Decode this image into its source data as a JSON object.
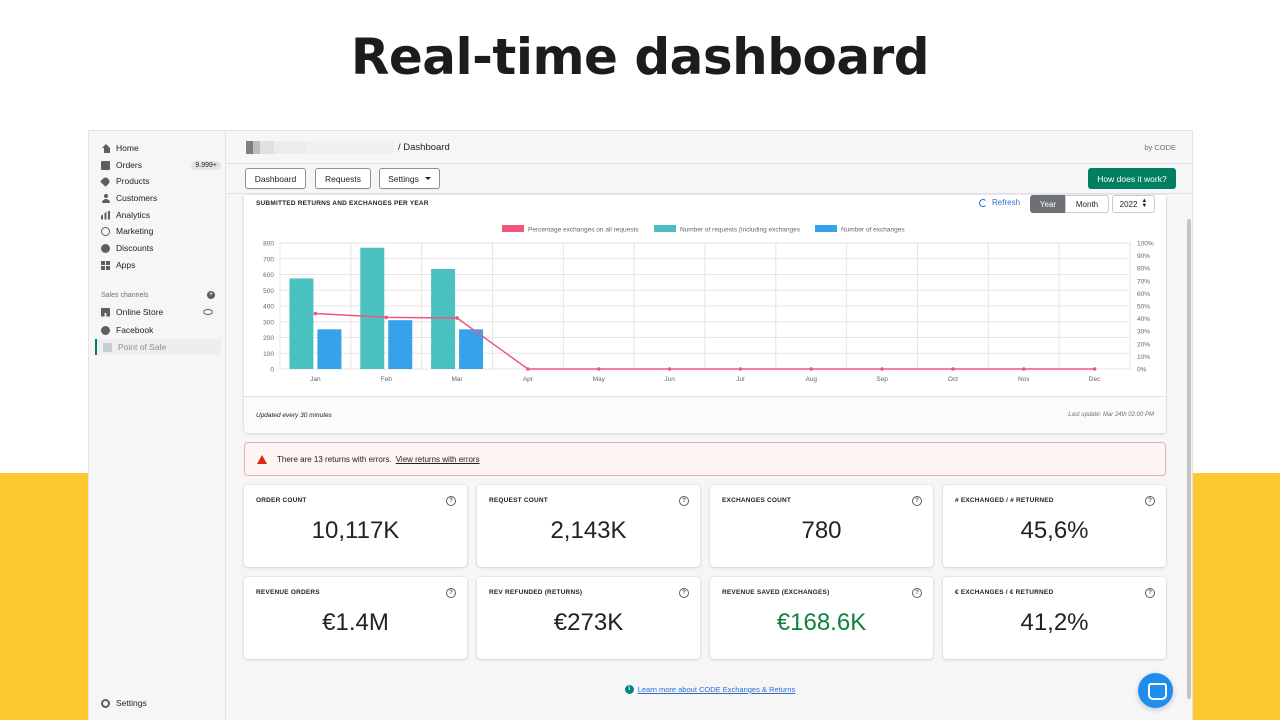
{
  "page": {
    "heading": "Real-time dashboard"
  },
  "sidebar": {
    "items": [
      {
        "label": "Home",
        "icon": "home-icon"
      },
      {
        "label": "Orders",
        "icon": "orders-icon",
        "badge": "9.999+"
      },
      {
        "label": "Products",
        "icon": "tag-icon"
      },
      {
        "label": "Customers",
        "icon": "person-icon"
      },
      {
        "label": "Analytics",
        "icon": "bar-chart-icon"
      },
      {
        "label": "Marketing",
        "icon": "target-icon"
      },
      {
        "label": "Discounts",
        "icon": "discount-icon"
      },
      {
        "label": "Apps",
        "icon": "apps-icon"
      }
    ],
    "sales_channels_label": "Sales channels",
    "channels": [
      {
        "label": "Online Store",
        "icon": "store-icon"
      },
      {
        "label": "Facebook",
        "icon": "facebook-icon"
      },
      {
        "label": "Point of Sale",
        "icon": "pos-icon"
      }
    ],
    "settings_label": "Settings"
  },
  "topbar": {
    "breadcrumb": "/ Dashboard",
    "byline": "by CODE"
  },
  "toolbar": {
    "dashboard": "Dashboard",
    "requests": "Requests",
    "settings": "Settings",
    "how_it_works": "How does it work?"
  },
  "chart_card": {
    "title": "SUBMITTED RETURNS AND EXCHANGES PER YEAR",
    "refresh": "Refresh",
    "period_year": "Year",
    "period_month": "Month",
    "selected_year": "2022",
    "updated_note": "Updated every 30 minutes",
    "last_update": "Last update: Mar 24th 02:00 PM"
  },
  "chart_data": {
    "type": "bar",
    "categories": [
      "Jan",
      "Feb",
      "Mar",
      "Apr",
      "May",
      "Jun",
      "Jul",
      "Aug",
      "Sep",
      "Oct",
      "Nov",
      "Dec"
    ],
    "ylim": [
      0,
      800
    ],
    "yticks": [
      0,
      100,
      200,
      300,
      400,
      500,
      600,
      700,
      800
    ],
    "y2lim": [
      0,
      100
    ],
    "y2ticks": [
      "0%",
      "10%",
      "20%",
      "30%",
      "40%",
      "50%",
      "60%",
      "70%",
      "80%",
      "90%",
      "100%"
    ],
    "series": [
      {
        "name": "Percentage exchanges on all requests",
        "type": "line",
        "axis": "right",
        "color": "#f0567c",
        "values": [
          44,
          41,
          40.5,
          0,
          0,
          0,
          0,
          0,
          0,
          0,
          0,
          0
        ]
      },
      {
        "name": "Number of requests (including exchanges",
        "type": "bar",
        "axis": "left",
        "color": "#4bc0c0",
        "values": [
          575,
          770,
          635,
          0,
          0,
          0,
          0,
          0,
          0,
          0,
          0,
          0
        ]
      },
      {
        "name": "Number of exchanges",
        "type": "bar",
        "axis": "left",
        "color": "#36a2eb",
        "values": [
          252,
          310,
          252,
          0,
          0,
          0,
          0,
          0,
          0,
          0,
          0,
          0
        ]
      }
    ],
    "legend": "top",
    "grid": true
  },
  "error_banner": {
    "text": "There are 13 returns with errors.",
    "link": "View returns with errors",
    "color": "#d72c0d"
  },
  "stats": [
    {
      "label": "ORDER COUNT",
      "value": "10,117K"
    },
    {
      "label": "REQUEST COUNT",
      "value": "2,143K"
    },
    {
      "label": "EXCHANGES COUNT",
      "value": "780"
    },
    {
      "label": "# EXCHANGED / # RETURNED",
      "value": "45,6%"
    },
    {
      "label": "REVENUE ORDERS",
      "value": "€1.4M"
    },
    {
      "label": "REV REFUNDED (RETURNS)",
      "value": "€273K"
    },
    {
      "label": "REVENUE SAVED (EXCHANGES)",
      "value": "€168.6K",
      "color": "#108043"
    },
    {
      "label": "€ EXCHANGES / € RETURNED",
      "value": "41,2%"
    }
  ],
  "help_glyph": "?",
  "learn_more": {
    "icon_glyph": "i",
    "text": "Learn more about CODE Exchanges & Returns"
  },
  "colors": {
    "brand": "#008060",
    "accent_yellow": "#fdc930",
    "link": "#2c6ecb"
  }
}
